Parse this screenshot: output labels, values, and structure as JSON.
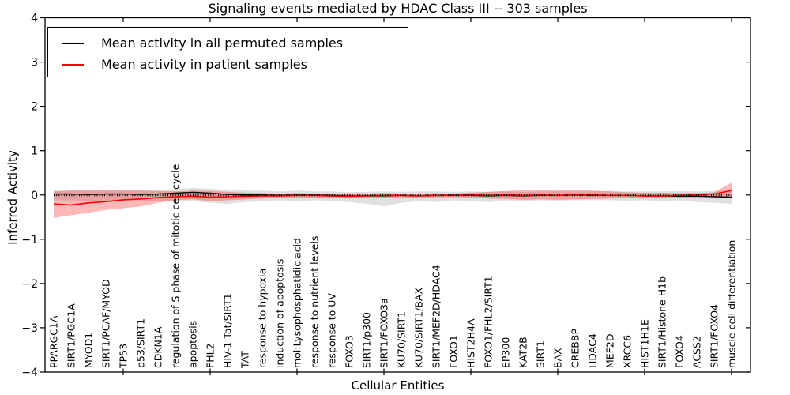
{
  "chart_data": {
    "type": "line",
    "title": "Signaling events mediated by HDAC Class III -- 303 samples",
    "xlabel": "Cellular Entities",
    "ylabel": "Inferred Activity",
    "ylim": [
      -4,
      4
    ],
    "yticks": [
      -4,
      -3,
      -2,
      -1,
      0,
      1,
      2,
      3,
      4
    ],
    "grid": false,
    "legend_position": "upper left",
    "zero_reference_line": true,
    "colors": {
      "permuted_line": "#000000",
      "patient_line": "#ff0000",
      "permuted_band": "rgba(0,0,0,0.12)",
      "patient_band": "rgba(255,0,0,0.28)",
      "axis": "#000000",
      "background": "#ffffff"
    },
    "categories": [
      "PPARGC1A",
      "SIRT1/PGC1A",
      "MYOD1",
      "SIRT1/PCAF/MYOD",
      "TP53",
      "p53/SIRT1",
      "CDKN1A",
      "regulation of S phase of mitotic cell cycle",
      "apoptosis",
      "FHL2",
      "HIV-1 Tat/SIRT1",
      "TAT",
      "response to hypoxia",
      "induction of apoptosis",
      "mol:Lysophosphatidic acid",
      "response to nutrient levels",
      "response to UV",
      "FOXO3",
      "SIRT1/p300",
      "SIRT1/FOXO3a",
      "KU70/SIRT1",
      "KU70/SIRT1/BAX",
      "SIRT1/MEF2D/HDAC4",
      "FOXO1",
      "HIST2H4A",
      "FOXO1/FHL2/SIRT1",
      "EP300",
      "KAT2B",
      "SIRT1",
      "BAX",
      "CREBBP",
      "HDAC4",
      "MEF2D",
      "XRCC6",
      "HIST1H1E",
      "SIRT1/Histone H1b",
      "FOXO4",
      "ACSS2",
      "SIRT1/FOXO4",
      "muscle cell differentiation"
    ],
    "series": [
      {
        "name": "Mean activity in all permuted samples",
        "color": "#000000",
        "values": [
          0.02,
          0.02,
          0.01,
          0.02,
          0.02,
          0.01,
          0.02,
          0.04,
          0.06,
          0.04,
          0.01,
          0.0,
          0.0,
          -0.01,
          0.0,
          0.0,
          -0.01,
          -0.02,
          -0.02,
          -0.02,
          -0.01,
          -0.02,
          -0.01,
          0.0,
          -0.01,
          -0.02,
          -0.01,
          -0.02,
          -0.01,
          -0.01,
          0.0,
          -0.01,
          -0.01,
          -0.01,
          -0.02,
          -0.02,
          -0.03,
          -0.03,
          -0.04,
          -0.05
        ],
        "band_upper": [
          0.1,
          0.1,
          0.11,
          0.1,
          0.11,
          0.1,
          0.12,
          0.13,
          0.16,
          0.14,
          0.12,
          0.1,
          0.1,
          0.08,
          0.1,
          0.08,
          0.08,
          0.06,
          0.07,
          0.08,
          0.07,
          0.08,
          0.08,
          0.07,
          0.08,
          0.07,
          0.08,
          0.07,
          0.08,
          0.08,
          0.08,
          0.08,
          0.09,
          0.08,
          0.08,
          0.08,
          0.09,
          0.08,
          0.09,
          0.1
        ],
        "band_lower": [
          -0.12,
          -0.12,
          -0.13,
          -0.14,
          -0.13,
          -0.12,
          -0.14,
          -0.14,
          -0.14,
          -0.18,
          -0.2,
          -0.16,
          -0.14,
          -0.12,
          -0.14,
          -0.12,
          -0.14,
          -0.16,
          -0.2,
          -0.26,
          -0.18,
          -0.14,
          -0.16,
          -0.12,
          -0.14,
          -0.16,
          -0.12,
          -0.14,
          -0.12,
          -0.13,
          -0.12,
          -0.12,
          -0.12,
          -0.13,
          -0.12,
          -0.14,
          -0.12,
          -0.16,
          -0.18,
          -0.2
        ]
      },
      {
        "name": "Mean activity in patient samples",
        "color": "#ff0000",
        "values": [
          -0.2,
          -0.23,
          -0.18,
          -0.15,
          -0.11,
          -0.09,
          -0.06,
          -0.04,
          -0.03,
          -0.05,
          -0.04,
          -0.03,
          -0.02,
          -0.02,
          -0.01,
          -0.01,
          -0.02,
          -0.03,
          -0.02,
          -0.01,
          -0.01,
          -0.02,
          -0.01,
          -0.01,
          0.0,
          -0.01,
          0.0,
          -0.01,
          0.0,
          -0.01,
          0.0,
          0.0,
          -0.01,
          -0.01,
          -0.02,
          -0.02,
          -0.01,
          0.0,
          0.02,
          0.1
        ],
        "band_upper": [
          0.08,
          0.1,
          0.1,
          0.11,
          0.1,
          0.1,
          0.09,
          0.08,
          0.1,
          0.09,
          0.07,
          0.05,
          0.04,
          0.03,
          0.04,
          0.03,
          0.03,
          0.04,
          0.03,
          0.04,
          0.03,
          0.03,
          0.04,
          0.03,
          0.05,
          0.07,
          0.09,
          0.11,
          0.12,
          0.1,
          0.12,
          0.1,
          0.08,
          0.06,
          0.05,
          0.05,
          0.04,
          0.04,
          0.06,
          0.28
        ],
        "band_lower": [
          -0.52,
          -0.46,
          -0.4,
          -0.34,
          -0.3,
          -0.26,
          -0.18,
          -0.12,
          -0.1,
          -0.14,
          -0.12,
          -0.1,
          -0.08,
          -0.07,
          -0.06,
          -0.06,
          -0.07,
          -0.08,
          -0.06,
          -0.06,
          -0.05,
          -0.06,
          -0.05,
          -0.05,
          -0.06,
          -0.08,
          -0.09,
          -0.11,
          -0.1,
          -0.11,
          -0.1,
          -0.09,
          -0.08,
          -0.07,
          -0.07,
          -0.06,
          -0.05,
          -0.04,
          -0.04,
          -0.06
        ]
      }
    ]
  }
}
